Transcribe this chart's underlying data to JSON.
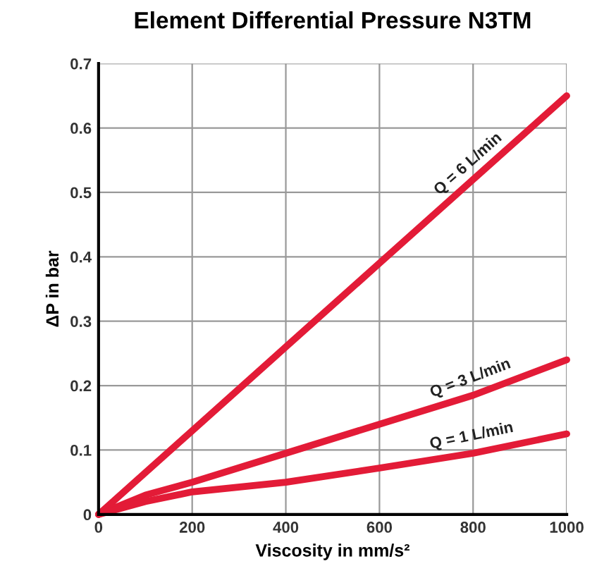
{
  "chart_data": {
    "type": "line",
    "title": "Element Differential Pressure N3TM",
    "xlabel": "Viscosity in mm/s²",
    "ylabel": "ΔP in bar",
    "xlim": [
      0,
      1000
    ],
    "ylim": [
      0,
      0.7
    ],
    "xticks": [
      0,
      200,
      400,
      600,
      800,
      1000
    ],
    "yticks": [
      0,
      0.1,
      0.2,
      0.3,
      0.4,
      0.5,
      0.6,
      0.7
    ],
    "grid": true,
    "legend": false,
    "marker": "none",
    "line_style": "solid",
    "series": [
      {
        "name": "Q = 6 L/min",
        "color": "#e31b37",
        "x": [
          0,
          200,
          400,
          600,
          800,
          1000
        ],
        "values": [
          0,
          0.13,
          0.26,
          0.39,
          0.52,
          0.65
        ]
      },
      {
        "name": "Q = 3 L/min",
        "color": "#e31b37",
        "x": [
          0,
          100,
          200,
          400,
          600,
          800,
          1000
        ],
        "values": [
          0,
          0.03,
          0.05,
          0.095,
          0.14,
          0.185,
          0.24
        ]
      },
      {
        "name": "Q = 1 L/min",
        "color": "#e31b37",
        "x": [
          0,
          100,
          200,
          400,
          600,
          800,
          1000
        ],
        "values": [
          0,
          0.02,
          0.035,
          0.05,
          0.072,
          0.095,
          0.125
        ]
      }
    ]
  }
}
